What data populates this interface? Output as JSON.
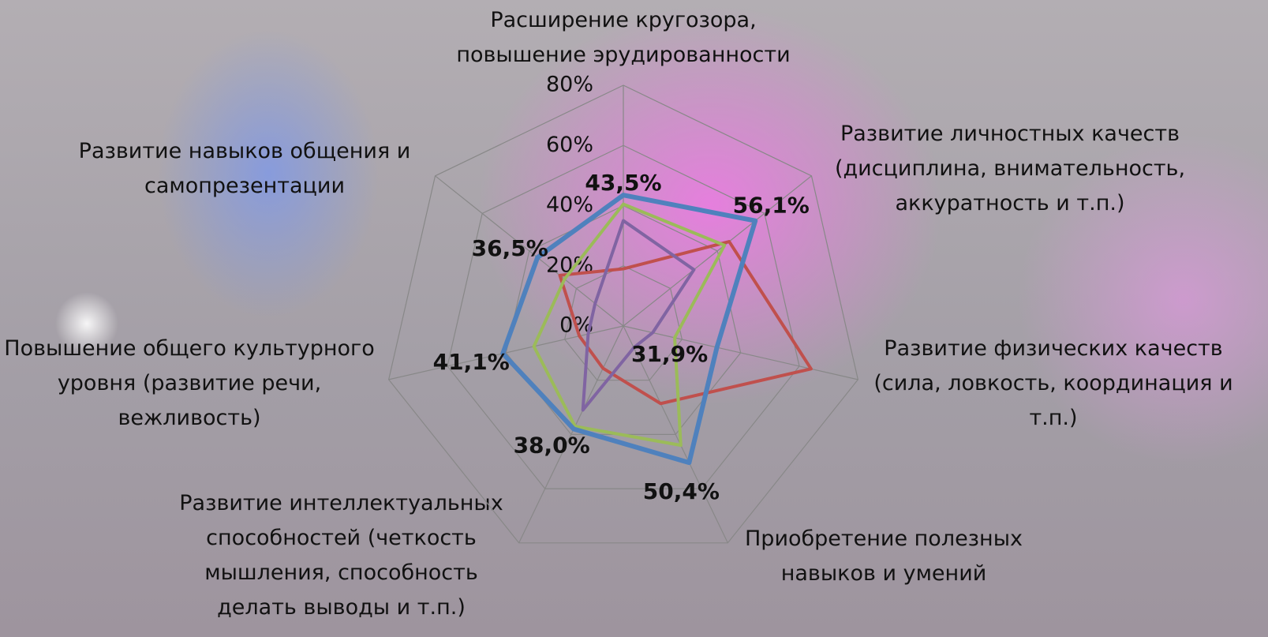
{
  "chart_data": {
    "type": "radar",
    "categories": [
      "Расширение кругозора, повышение эрудированности",
      "Развитие личностных качеств (дисциплина, внимательность, аккуратность и т.п.)",
      "Развитие физических качеств (сила, ловкость, координация и т.п.)",
      "Приобретение полезных навыков и умений",
      "Развитие интеллектуальных способностей (четкость мышления, способность делать выводы и т.п.)",
      "Повышение общего культурного уровня (развитие речи, вежливость)",
      "Развитие навыков общения и самопрезентации"
    ],
    "series": [
      {
        "color": "#c0504d",
        "values": [
          19,
          45,
          64,
          28.6,
          15.6,
          15,
          27
        ]
      },
      {
        "color": "#9bbb59",
        "values": [
          40.5,
          43,
          17.5,
          44,
          37,
          30.5,
          25
        ]
      },
      {
        "color": "#8064a2",
        "values": [
          35,
          30,
          10,
          8,
          31,
          12,
          12
        ]
      },
      {
        "color": "#4f81bd",
        "values": [
          43.5,
          56.1,
          31.9,
          50.4,
          38.0,
          41.1,
          36.5
        ],
        "value_labels": [
          "43,5%",
          "56,1%",
          "31,9%",
          "50,4%",
          "38,0%",
          "41,1%",
          "36,5%"
        ]
      }
    ],
    "ylim": [
      0,
      80
    ],
    "yticks": [
      {
        "value": 0,
        "label": "0%"
      },
      {
        "value": 20,
        "label": "20%"
      },
      {
        "value": 40,
        "label": "40%"
      },
      {
        "value": 60,
        "label": "60%"
      },
      {
        "value": 80,
        "label": "80%"
      }
    ],
    "grid": true
  }
}
